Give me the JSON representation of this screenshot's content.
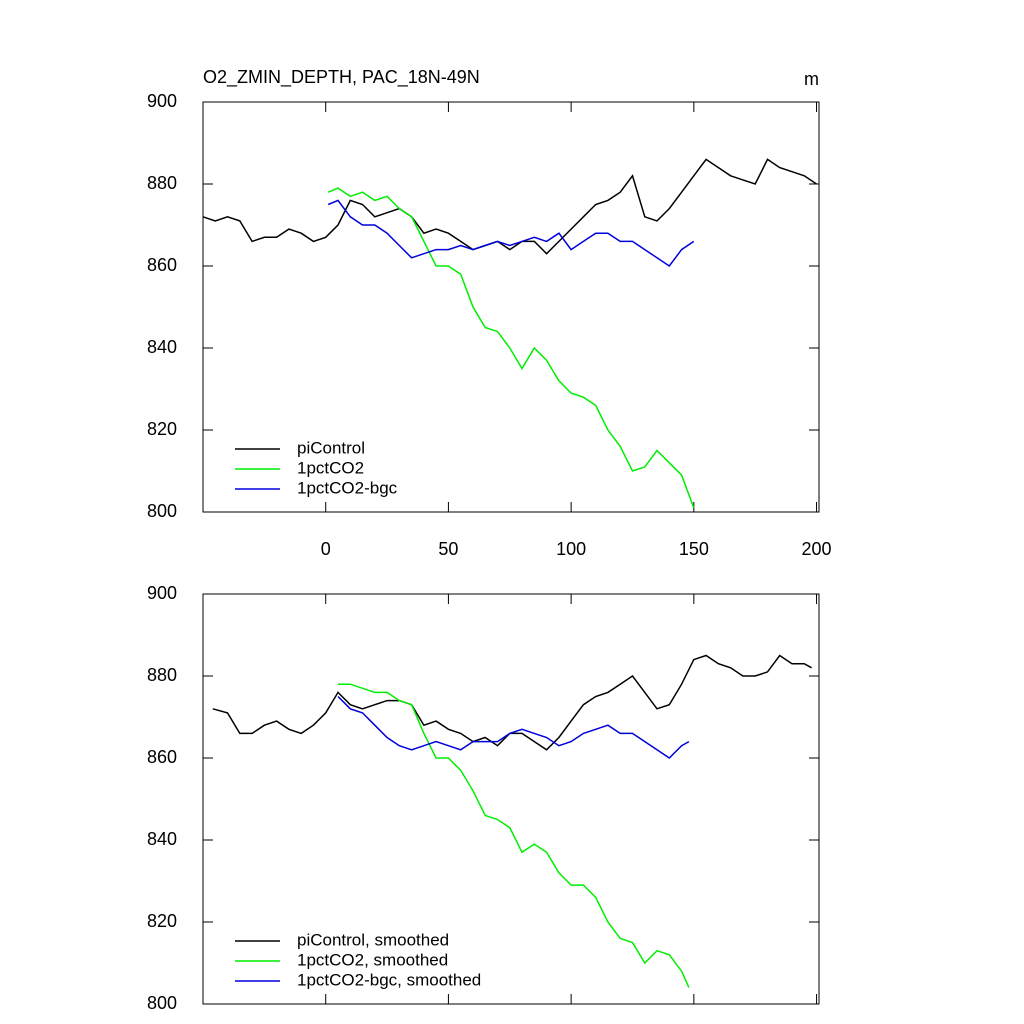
{
  "chart_data": [
    {
      "type": "line",
      "title": "O2_ZMIN_DEPTH, PAC_18N-49N",
      "units": "m",
      "xlim": [
        -50,
        201
      ],
      "ylim": [
        800,
        900
      ],
      "xticks": [
        0,
        50,
        100,
        150,
        200
      ],
      "yticks": [
        800,
        820,
        840,
        860,
        880,
        900
      ],
      "xtick_labels": true,
      "legend": "lower left",
      "series": [
        {
          "name": "piControl",
          "color": "#000000",
          "x": [
            -50,
            -45,
            -40,
            -35,
            -30,
            -25,
            -20,
            -15,
            -10,
            -5,
            0,
            5,
            10,
            15,
            20,
            25,
            30,
            35,
            40,
            45,
            50,
            55,
            60,
            65,
            70,
            75,
            80,
            85,
            90,
            95,
            100,
            105,
            110,
            115,
            120,
            125,
            130,
            135,
            140,
            145,
            150,
            155,
            160,
            165,
            170,
            175,
            180,
            185,
            190,
            195,
            200
          ],
          "values": [
            872,
            871,
            872,
            871,
            866,
            867,
            867,
            869,
            868,
            866,
            867,
            870,
            876,
            875,
            872,
            873,
            874,
            872,
            868,
            869,
            868,
            866,
            864,
            865,
            866,
            864,
            866,
            866,
            863,
            866,
            869,
            872,
            875,
            876,
            878,
            882,
            872,
            871,
            874,
            878,
            882,
            886,
            884,
            882,
            881,
            880,
            886,
            884,
            883,
            882,
            880
          ]
        },
        {
          "name": "1pctCO2",
          "color": "#00ee00",
          "x": [
            1,
            5,
            10,
            15,
            20,
            25,
            30,
            35,
            40,
            45,
            50,
            55,
            60,
            65,
            70,
            75,
            80,
            85,
            90,
            95,
            100,
            105,
            110,
            115,
            120,
            125,
            130,
            135,
            140,
            145,
            150
          ],
          "values": [
            878,
            879,
            877,
            878,
            876,
            877,
            874,
            872,
            866,
            860,
            860,
            858,
            850,
            845,
            844,
            840,
            835,
            840,
            837,
            832,
            829,
            828,
            826,
            820,
            816,
            810,
            811,
            815,
            812,
            809,
            801
          ]
        },
        {
          "name": "1pctCO2-bgc",
          "color": "#0000dd",
          "x": [
            1,
            5,
            10,
            15,
            20,
            25,
            30,
            35,
            40,
            45,
            50,
            55,
            60,
            65,
            70,
            75,
            80,
            85,
            90,
            95,
            100,
            105,
            110,
            115,
            120,
            125,
            130,
            135,
            140,
            145,
            150
          ],
          "values": [
            875,
            876,
            872,
            870,
            870,
            868,
            865,
            862,
            863,
            864,
            864,
            865,
            864,
            865,
            866,
            865,
            866,
            867,
            866,
            868,
            864,
            866,
            868,
            868,
            866,
            866,
            864,
            862,
            860,
            864,
            866
          ]
        }
      ]
    },
    {
      "type": "line",
      "xlim": [
        -50,
        201
      ],
      "ylim": [
        800,
        900
      ],
      "xticks": [
        0,
        50,
        100,
        150,
        200
      ],
      "yticks": [
        800,
        820,
        840,
        860,
        880,
        900
      ],
      "xtick_labels": false,
      "legend": "lower left",
      "series": [
        {
          "name": "piControl, smoothed",
          "color": "#000000",
          "x": [
            -46,
            -40,
            -35,
            -30,
            -25,
            -20,
            -15,
            -10,
            -5,
            0,
            5,
            10,
            15,
            20,
            25,
            30,
            35,
            40,
            45,
            50,
            55,
            60,
            65,
            70,
            75,
            80,
            85,
            90,
            95,
            100,
            105,
            110,
            115,
            120,
            125,
            130,
            135,
            140,
            145,
            150,
            155,
            160,
            165,
            170,
            175,
            180,
            185,
            190,
            195,
            198
          ],
          "values": [
            872,
            871,
            866,
            866,
            868,
            869,
            867,
            866,
            868,
            871,
            876,
            873,
            872,
            873,
            874,
            874,
            873,
            868,
            869,
            867,
            866,
            864,
            865,
            863,
            866,
            866,
            864,
            862,
            865,
            869,
            873,
            875,
            876,
            878,
            880,
            876,
            872,
            873,
            878,
            884,
            885,
            883,
            882,
            880,
            880,
            881,
            885,
            883,
            883,
            882
          ]
        },
        {
          "name": "1pctCO2, smoothed",
          "color": "#00ee00",
          "x": [
            5,
            10,
            15,
            20,
            25,
            30,
            35,
            40,
            45,
            50,
            55,
            60,
            65,
            70,
            75,
            80,
            85,
            90,
            95,
            100,
            105,
            110,
            115,
            120,
            125,
            130,
            135,
            140,
            145,
            148
          ],
          "values": [
            878,
            878,
            877,
            876,
            876,
            874,
            873,
            866,
            860,
            860,
            857,
            852,
            846,
            845,
            843,
            837,
            839,
            837,
            832,
            829,
            829,
            826,
            820,
            816,
            815,
            810,
            813,
            812,
            808,
            804
          ]
        },
        {
          "name": "1pctCO2-bgc, smoothed",
          "color": "#0000dd",
          "x": [
            5,
            10,
            15,
            20,
            25,
            30,
            35,
            40,
            45,
            50,
            55,
            60,
            65,
            70,
            75,
            80,
            85,
            90,
            95,
            100,
            105,
            110,
            115,
            120,
            125,
            130,
            135,
            140,
            145,
            148
          ],
          "values": [
            875,
            872,
            871,
            868,
            865,
            863,
            862,
            863,
            864,
            863,
            862,
            864,
            864,
            864,
            866,
            867,
            866,
            865,
            863,
            864,
            866,
            867,
            868,
            866,
            866,
            864,
            862,
            860,
            863,
            864
          ]
        }
      ]
    }
  ]
}
